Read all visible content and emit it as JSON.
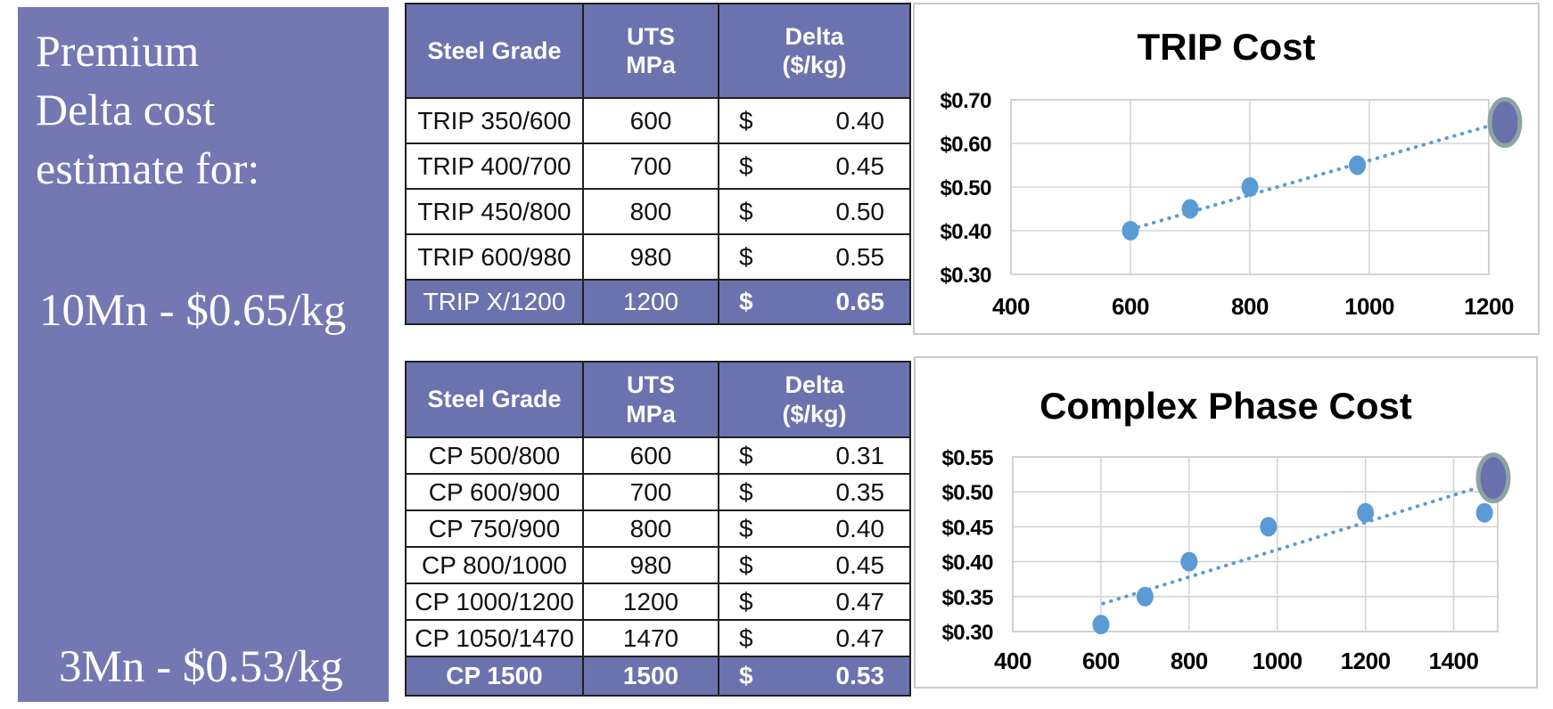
{
  "sidebar": {
    "background": "#7378B3",
    "text_color": "#ffffff",
    "heading_lines": [
      "Premium",
      "Delta cost",
      "estimate for:"
    ],
    "estimates": [
      {
        "label": "10Mn - $0.65/kg"
      },
      {
        "label": "3Mn - $0.53/kg"
      }
    ]
  },
  "tables": [
    {
      "header_bg": "#6B73AE",
      "highlight_bg": "#6B73AE",
      "headers": [
        "Steel Grade",
        "UTS\nMPa",
        "Delta\n($/kg)"
      ],
      "rows": [
        {
          "grade": "TRIP 350/600",
          "uts": "600",
          "currency": "$",
          "delta": "0.40",
          "highlighted": false,
          "bold_all": false
        },
        {
          "grade": "TRIP 400/700",
          "uts": "700",
          "currency": "$",
          "delta": "0.45",
          "highlighted": false,
          "bold_all": false
        },
        {
          "grade": "TRIP 450/800",
          "uts": "800",
          "currency": "$",
          "delta": "0.50",
          "highlighted": false,
          "bold_all": false
        },
        {
          "grade": "TRIP 600/980",
          "uts": "980",
          "currency": "$",
          "delta": "0.55",
          "highlighted": false,
          "bold_all": false
        },
        {
          "grade": "TRIP X/1200",
          "uts": "1200",
          "currency": "$",
          "delta": "0.65",
          "highlighted": true,
          "bold_all": false
        }
      ]
    },
    {
      "header_bg": "#6B73AE",
      "highlight_bg": "#6B73AE",
      "headers": [
        "Steel Grade",
        "UTS\nMPa",
        "Delta\n($/kg)"
      ],
      "rows": [
        {
          "grade": "CP 500/800",
          "uts": "600",
          "currency": "$",
          "delta": "0.31",
          "highlighted": false,
          "bold_all": false
        },
        {
          "grade": "CP 600/900",
          "uts": "700",
          "currency": "$",
          "delta": "0.35",
          "highlighted": false,
          "bold_all": false
        },
        {
          "grade": "CP 750/900",
          "uts": "800",
          "currency": "$",
          "delta": "0.40",
          "highlighted": false,
          "bold_all": false
        },
        {
          "grade": "CP 800/1000",
          "uts": "980",
          "currency": "$",
          "delta": "0.45",
          "highlighted": false,
          "bold_all": false
        },
        {
          "grade": "CP 1000/1200",
          "uts": "1200",
          "currency": "$",
          "delta": "0.47",
          "highlighted": false,
          "bold_all": false
        },
        {
          "grade": "CP 1050/1470",
          "uts": "1470",
          "currency": "$",
          "delta": "0.47",
          "highlighted": false,
          "bold_all": false
        },
        {
          "grade": "CP 1500",
          "uts": "1500",
          "currency": "$",
          "delta": "0.53",
          "highlighted": true,
          "bold_all": true
        }
      ]
    }
  ],
  "chart_data": [
    {
      "type": "scatter",
      "title": "TRIP Cost",
      "xlabel": "",
      "ylabel": "",
      "x": [
        600,
        700,
        800,
        980,
        1200
      ],
      "y": [
        0.4,
        0.45,
        0.5,
        0.55,
        0.65
      ],
      "xlim": [
        400,
        1200
      ],
      "ylim": [
        0.3,
        0.7
      ],
      "x_ticks": [
        400,
        600,
        800,
        1000,
        1200
      ],
      "y_ticks": [
        0.3,
        0.4,
        0.5,
        0.6,
        0.7
      ],
      "y_tick_labels": [
        "$0.30",
        "$0.40",
        "$0.50",
        "$0.60",
        "$0.70"
      ],
      "grid": true,
      "legend": false,
      "trendline": {
        "style": "dotted",
        "x1": 600,
        "y1": 0.403,
        "x2": 1200,
        "y2": 0.64
      },
      "highlight_point": {
        "x": 1200,
        "y": 0.65,
        "note": "emphasized with oval marker"
      },
      "point_color": "#5B9BD5",
      "highlight_fill": "#6971AC",
      "highlight_stroke": "#8EA4A3"
    },
    {
      "type": "scatter",
      "title": "Complex Phase Cost",
      "xlabel": "",
      "ylabel": "",
      "x": [
        600,
        700,
        800,
        980,
        1200,
        1470
      ],
      "y": [
        0.31,
        0.35,
        0.4,
        0.45,
        0.47,
        0.47
      ],
      "xlim": [
        400,
        1500
      ],
      "ylim": [
        0.3,
        0.55
      ],
      "x_ticks": [
        400,
        600,
        800,
        1000,
        1200,
        1400
      ],
      "y_ticks": [
        0.3,
        0.35,
        0.4,
        0.45,
        0.5,
        0.55
      ],
      "y_tick_labels": [
        "$0.30",
        "$0.35",
        "$0.40",
        "$0.45",
        "$0.50",
        "$0.55"
      ],
      "grid": true,
      "legend": false,
      "trendline": {
        "style": "dotted",
        "x1": 605,
        "y1": 0.34,
        "x2": 1475,
        "y2": 0.51
      },
      "highlight_point": {
        "x": 1500,
        "y": 0.53,
        "note": "emphasized with oval marker"
      },
      "point_color": "#5B9BD5",
      "highlight_fill": "#6971AC",
      "highlight_stroke": "#8EA4A3"
    }
  ]
}
